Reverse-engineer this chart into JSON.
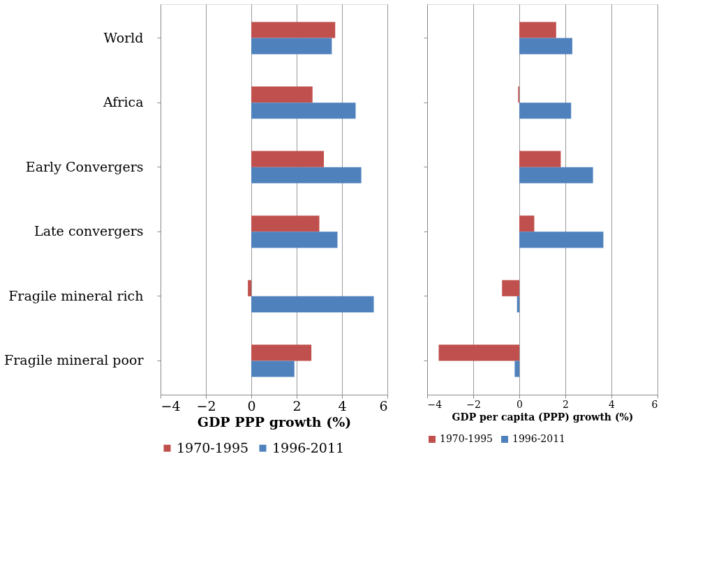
{
  "chart_data": [
    {
      "type": "bar",
      "orientation": "horizontal",
      "categories": [
        "World",
        "Africa",
        "Early Convergers",
        "Late convergers",
        "Fragile mineral rich",
        "Fragile mineral poor"
      ],
      "series": [
        {
          "name": "1970-1995",
          "color": "#c0504d",
          "values": [
            3.7,
            2.7,
            3.2,
            3.0,
            -0.15,
            2.65
          ]
        },
        {
          "name": "1996-2011",
          "color": "#4f81bd",
          "values": [
            3.55,
            4.6,
            4.85,
            3.8,
            5.4,
            1.9
          ]
        }
      ],
      "xlabel": "GDP PPP growth (%)",
      "xlim": [
        -4,
        6
      ],
      "xticks": [
        -4,
        -2,
        0,
        2,
        4,
        6
      ],
      "grid": "x",
      "legend": "bottom"
    },
    {
      "type": "bar",
      "orientation": "horizontal",
      "categories": [
        null,
        null,
        null,
        null,
        null,
        null
      ],
      "series": [
        {
          "name": "1970-1995",
          "color": "#c0504d",
          "values": [
            1.6,
            -0.05,
            1.8,
            0.65,
            -0.75,
            -3.5
          ]
        },
        {
          "name": "1996-2011",
          "color": "#4f81bd",
          "values": [
            2.3,
            2.25,
            3.2,
            3.65,
            -0.1,
            -0.2
          ]
        }
      ],
      "xlabel": "GDP per capita (PPP) growth (%)",
      "xlim": [
        -4,
        6
      ],
      "xticks": [
        -4,
        -2,
        0,
        2,
        4,
        6
      ],
      "grid": "x",
      "legend": "bottom",
      "tick_labels": "x"
    }
  ]
}
